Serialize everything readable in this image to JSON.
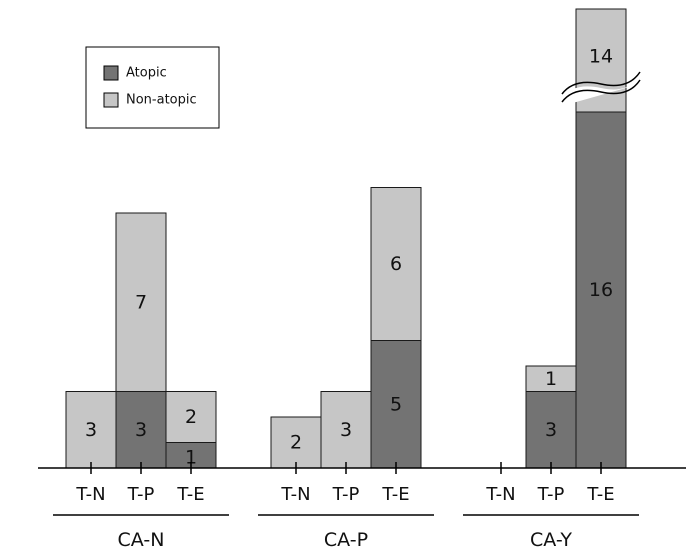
{
  "chart_data": {
    "type": "bar",
    "stacked": true,
    "title": "",
    "xlabel": "",
    "ylabel": "",
    "legend_position": "top-left",
    "colors": {
      "Atopic": "#737373",
      "Non-atopic": "#c6c6c6"
    },
    "groups": [
      {
        "label": "CA-N",
        "categories": [
          "T-N",
          "T-P",
          "T-E"
        ]
      },
      {
        "label": "CA-P",
        "categories": [
          "T-N",
          "T-P",
          "T-E"
        ]
      },
      {
        "label": "CA-Y",
        "categories": [
          "T-N",
          "T-P",
          "T-E"
        ]
      }
    ],
    "series": [
      {
        "name": "Atopic",
        "values": [
          [
            0,
            3,
            1
          ],
          [
            0,
            0,
            5
          ],
          [
            0,
            3,
            16
          ]
        ]
      },
      {
        "name": "Non-atopic",
        "values": [
          [
            3,
            7,
            2
          ],
          [
            2,
            3,
            6
          ],
          [
            0,
            1,
            14
          ]
        ]
      }
    ],
    "axis_break": {
      "group": "CA-Y",
      "category": "T-E"
    }
  }
}
